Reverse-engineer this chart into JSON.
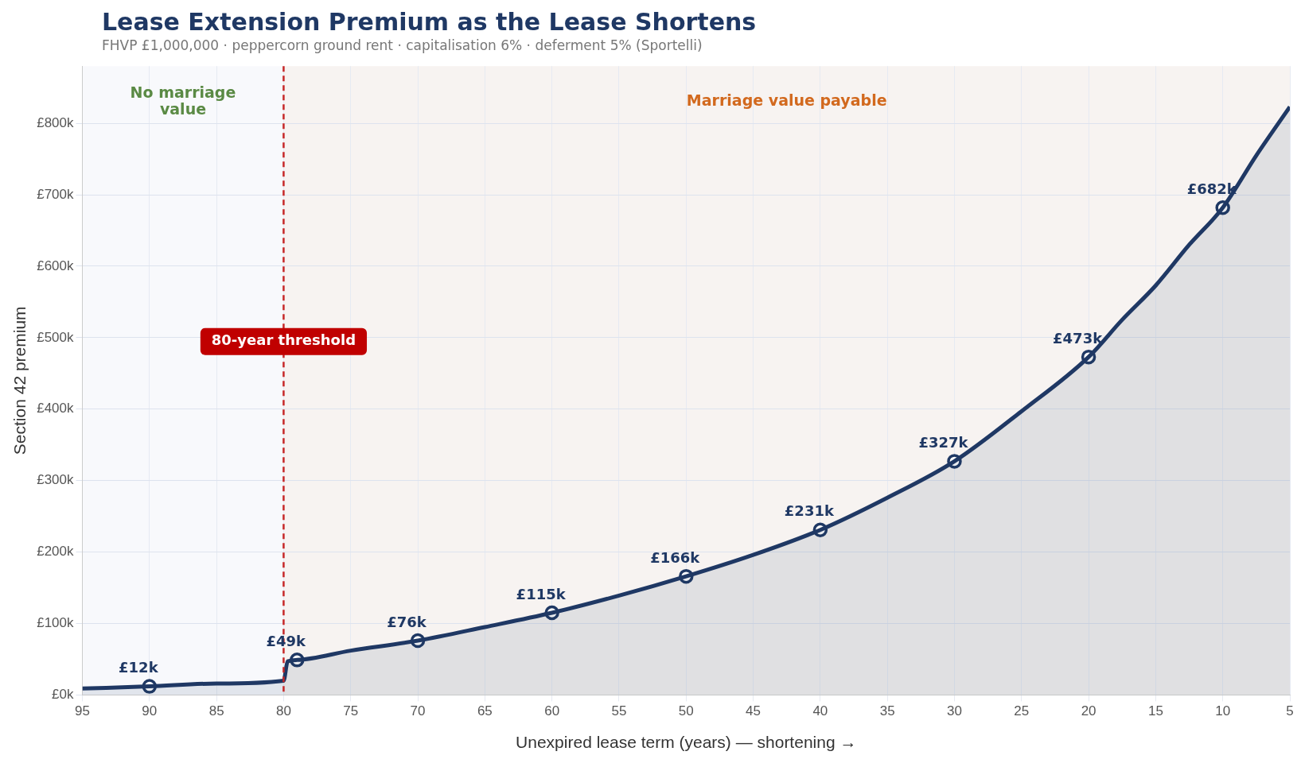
{
  "chart_data": {
    "type": "area",
    "title": "Lease Extension Premium as the Lease Shortens",
    "subtitle": "FHVP £1,000,000  ·  peppercorn ground rent  ·  capitalisation 6%  ·  deferment 5% (Sportelli)",
    "xlabel": "Unexpired lease term (years) — shortening →",
    "ylabel": "Section 42 premium",
    "series": [
      {
        "color": "#1f3864",
        "marker": "none",
        "x": [
          95,
          90,
          85,
          80,
          79.7,
          79,
          75,
          70,
          65,
          60,
          55,
          50,
          45,
          40,
          35,
          30,
          25,
          20,
          17.5,
          15,
          12.5,
          10,
          7.5,
          5
        ],
        "values": [
          9,
          12,
          16,
          20,
          47,
          49,
          62,
          76,
          95,
          115,
          139,
          166,
          196,
          231,
          276,
          327,
          397,
          473,
          525,
          573,
          630,
          682,
          755,
          823
        ]
      },
      {
        "type": "scatter",
        "color": "#1f3864",
        "marker": "circle",
        "x": [
          90,
          79,
          70,
          60,
          50,
          40,
          30,
          20,
          10
        ],
        "values": [
          12,
          49,
          76,
          115,
          166,
          231,
          327,
          473,
          682
        ],
        "value_labels": [
          "£12k",
          "£49k",
          "£76k",
          "£115k",
          "£166k",
          "£231k",
          "£327k",
          "£473k",
          "£682k"
        ]
      }
    ],
    "xlim": [
      95,
      5
    ],
    "xticks": [
      95,
      90,
      85,
      80,
      75,
      70,
      65,
      60,
      55,
      50,
      45,
      40,
      35,
      30,
      25,
      20,
      15,
      10,
      5
    ],
    "ylim": [
      0,
      880
    ],
    "yticks": [
      {
        "value": 0,
        "label": "£0k"
      },
      {
        "value": 100,
        "label": "£100k"
      },
      {
        "value": 200,
        "label": "£200k"
      },
      {
        "value": 300,
        "label": "£300k"
      },
      {
        "value": 400,
        "label": "£400k"
      },
      {
        "value": 500,
        "label": "£500k"
      },
      {
        "value": 600,
        "label": "£600k"
      },
      {
        "value": 700,
        "label": "£700k"
      },
      {
        "value": 800,
        "label": "£800k"
      }
    ],
    "bands": [
      {
        "axis": "x",
        "from": 95,
        "to": 80,
        "label": "No marriage value",
        "color": "#f8f9fc"
      },
      {
        "axis": "x",
        "from": 80,
        "to": 5,
        "label": "Marriage value payable",
        "color": "#f7f3f1"
      }
    ],
    "ref_lines": [
      {
        "axis": "x",
        "value": 80,
        "label": "80-year threshold",
        "color": "#c62828",
        "line_style": "dashed"
      }
    ],
    "grid": true,
    "legend": false,
    "line_style": "solid"
  }
}
